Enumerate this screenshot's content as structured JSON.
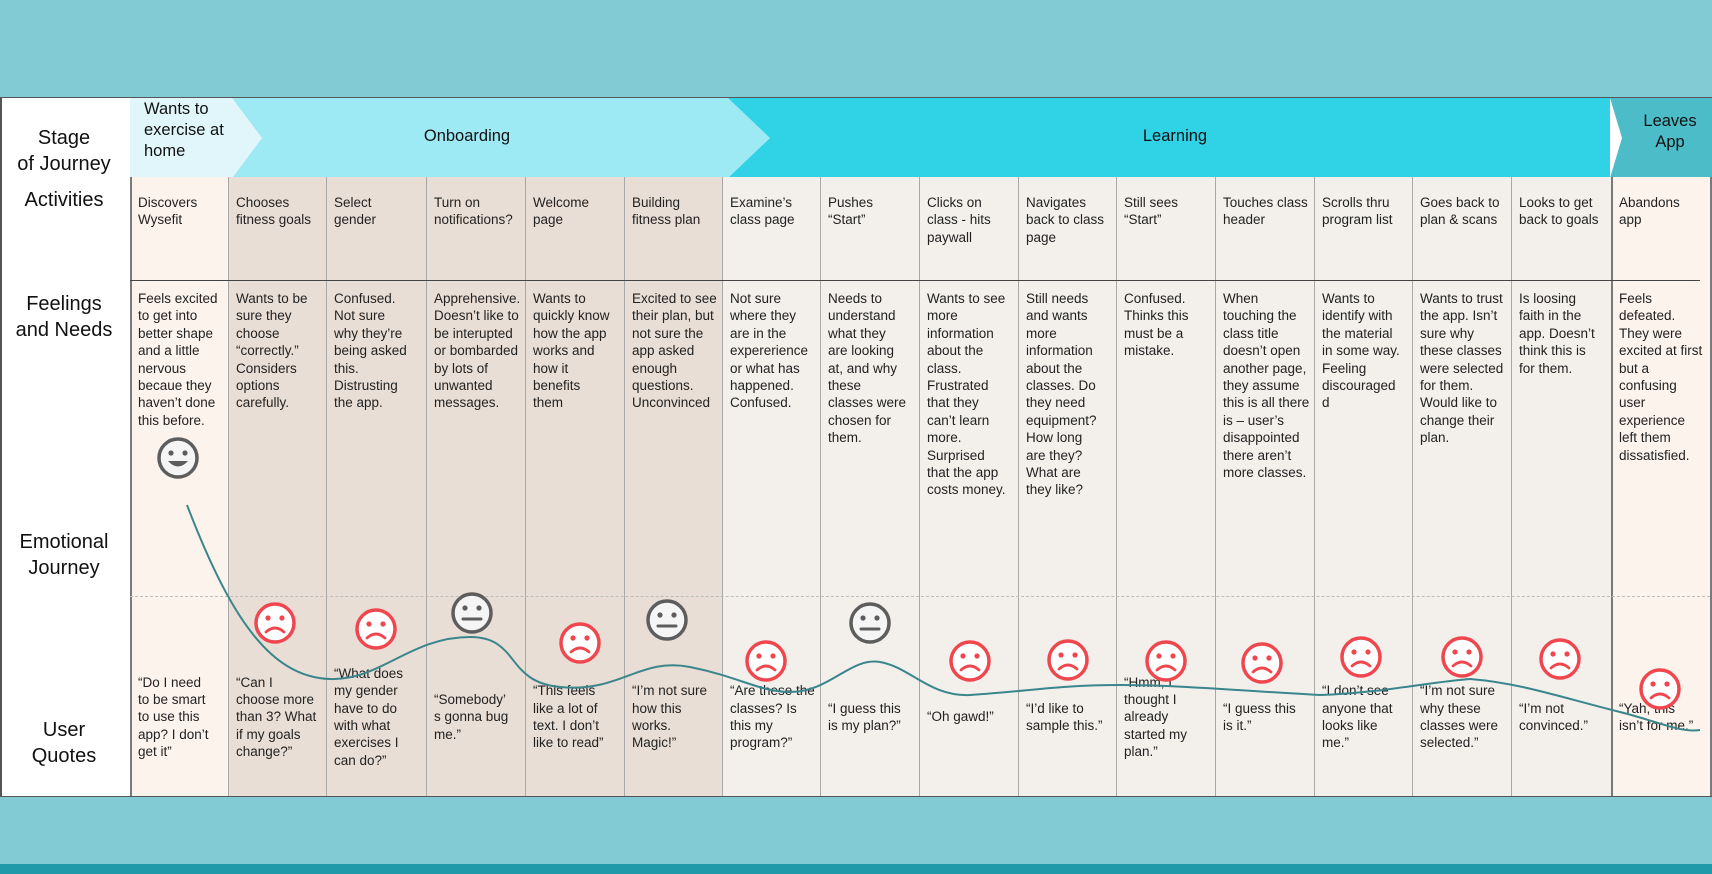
{
  "colors": {
    "background": "#82cbd4",
    "stage_light": "#e0f6fa",
    "stage_onboard": "#9eeaf4",
    "stage_learning": "#30d2e6",
    "stage_leave": "#4bbcc8",
    "col_first": "#fcf3ec",
    "col_onboard": "#e9ded5",
    "col_learning": "#f3f0ec",
    "sad": "#f0474f",
    "neutral": "#5d5d5d",
    "curve": "#3a868c"
  },
  "row_labels": {
    "stage": [
      "Stage",
      "of Journey"
    ],
    "activities": [
      "Activities"
    ],
    "feelings": [
      "Feelings",
      "and Needs"
    ],
    "emotional": [
      "Emotional",
      "Journey"
    ],
    "quotes": [
      "User",
      "Quotes"
    ]
  },
  "stages": [
    {
      "lines": [
        "Wants to",
        "exercise at",
        "home"
      ]
    },
    {
      "lines": [
        "Onboarding"
      ]
    },
    {
      "lines": [
        "Learning"
      ]
    },
    {
      "lines": [
        "Leaves",
        "App"
      ]
    }
  ],
  "columns": [
    {
      "activity": [
        "Discovers",
        "Wysefit"
      ],
      "feeling": [
        "Feels excited",
        "to get into",
        "better shape",
        "and a little",
        "nervous",
        "becaue they",
        "haven’t done",
        "this before."
      ],
      "quote": [
        "“Do I need",
        "to be smart",
        "to use this",
        "app? I don’t",
        "get it”"
      ],
      "emotion": "happy",
      "sentiment": 0.95
    },
    {
      "activity": [
        "Chooses",
        "fitness goals"
      ],
      "feeling": [
        "Wants to be",
        "sure they",
        "choose",
        "“correctly.”",
        "Considers",
        "options",
        "carefully."
      ],
      "quote": [
        "“Can I",
        "choose more",
        "than 3? What",
        "if my goals",
        "change?”"
      ],
      "emotion": "sad",
      "sentiment": 0.4
    },
    {
      "activity": [
        "Select",
        "gender"
      ],
      "feeling": [
        "Confused.",
        "Not sure",
        "why they’re",
        "being asked",
        "this.",
        "Distrusting",
        "the app."
      ],
      "quote": [
        "“What does",
        "my gender",
        "have to do",
        "with what",
        "exercises I",
        "can do?”"
      ],
      "emotion": "sad",
      "sentiment": 0.38
    },
    {
      "activity": [
        "Turn on",
        "notifications?"
      ],
      "feeling": [
        "Apprehensive.",
        "Doesn’t like to",
        "be interupted",
        "or bombarded",
        "by lots of",
        "unwanted",
        "messages."
      ],
      "quote": [
        "“Somebody’",
        "s gonna bug",
        "me.”"
      ],
      "emotion": "neutral",
      "sentiment": 0.5
    },
    {
      "activity": [
        "Welcome",
        "page"
      ],
      "feeling": [
        "Wants to",
        "quickly know",
        "how the app",
        "works and",
        "how it",
        "benefits",
        "them"
      ],
      "quote": [
        "“This feels",
        "like a lot of",
        "text. I don’t",
        "like to read”"
      ],
      "emotion": "sad",
      "sentiment": 0.35
    },
    {
      "activity": [
        "Building",
        "fitness plan"
      ],
      "feeling": [
        "Excited to see",
        "their plan, but",
        "not sure the",
        "app asked",
        "enough",
        "questions.",
        "Unconvinced"
      ],
      "quote": [
        "“I’m not sure",
        "how this",
        "works.",
        "Magic!”"
      ],
      "emotion": "neutral",
      "sentiment": 0.47
    },
    {
      "activity": [
        "Examine’s",
        "class page"
      ],
      "feeling": [
        "Not sure",
        "where they",
        "are in the",
        "expererience",
        "or what has",
        "happened.",
        "Confused."
      ],
      "quote": [
        "“Are these the",
        "classes? Is",
        "this my",
        "program?”"
      ],
      "emotion": "sad",
      "sentiment": 0.34
    },
    {
      "activity": [
        "Pushes",
        "“Start”"
      ],
      "feeling": [
        "Needs to",
        "understand",
        "what they",
        "are looking",
        "at, and why",
        "these",
        "classes were",
        "chosen for",
        "them."
      ],
      "quote": [
        "“I guess this",
        "is my plan?”"
      ],
      "emotion": "neutral",
      "sentiment": 0.47
    },
    {
      "activity": [
        "Clicks on",
        "class - hits",
        "paywall"
      ],
      "feeling": [
        "Wants to see",
        "more",
        "information",
        "about the",
        "class.",
        "Frustrated",
        "that they",
        "can’t learn",
        "more.",
        "Surprised",
        "that the app",
        "costs money."
      ],
      "quote": [
        "“Oh gawd!”"
      ],
      "emotion": "sad",
      "sentiment": 0.34
    },
    {
      "activity": [
        "Navigates",
        "back to class",
        "page"
      ],
      "feeling": [
        "Still needs",
        "and wants",
        "more",
        "information",
        "about the",
        "classes. Do",
        "they need",
        "equipment?",
        "How long",
        "are they?",
        "What are",
        "they like?"
      ],
      "quote": [
        "“I’d like to",
        "sample this.”"
      ],
      "emotion": "sad",
      "sentiment": 0.34
    },
    {
      "activity": [
        "Still sees",
        "“Start”"
      ],
      "feeling": [
        "Confused.",
        "Thinks this",
        "must be a",
        "mistake."
      ],
      "quote": [
        "“Hmm, I",
        "thought I",
        "already",
        "started my",
        "plan.”"
      ],
      "emotion": "sad",
      "sentiment": 0.34
    },
    {
      "activity": [
        "Touches class",
        "header"
      ],
      "feeling": [
        "When",
        "touching the",
        "class title",
        "doesn’t open",
        "another page,",
        "they assume",
        "this is all there",
        "is – user’s",
        "disappointed",
        "there aren’t",
        "more classes."
      ],
      "quote": [
        "“I guess this",
        "is it.”"
      ],
      "emotion": "sad",
      "sentiment": 0.34
    },
    {
      "activity": [
        "Scrolls thru",
        "program list"
      ],
      "feeling": [
        "Wants to",
        "identify with",
        "the material",
        "in some way.",
        "Feeling",
        "discouraged",
        "d"
      ],
      "quote": [
        "“I don’t see",
        "anyone that",
        "looks like",
        "me.”"
      ],
      "emotion": "sad",
      "sentiment": 0.36
    },
    {
      "activity": [
        "Goes back to",
        "plan & scans"
      ],
      "feeling": [
        "Wants to trust",
        "the app. Isn’t",
        "sure why",
        "these classes",
        "were selected",
        "for them.",
        "Would like to",
        "change their",
        "plan."
      ],
      "quote": [
        "“I’m not sure",
        "why these",
        "classes were",
        "selected.”"
      ],
      "emotion": "sad",
      "sentiment": 0.36
    },
    {
      "activity": [
        "Looks to get",
        "back to goals"
      ],
      "feeling": [
        "Is loosing",
        "faith in the",
        "app. Doesn’t",
        "think this is",
        "for them."
      ],
      "quote": [
        "“I’m not",
        "convinced.”"
      ],
      "emotion": "sad",
      "sentiment": 0.34
    },
    {
      "activity": [
        "Abandons",
        "app"
      ],
      "feeling": [
        "Feels",
        "defeated.",
        "They were",
        "excited at first",
        "but a",
        "confusing",
        "user",
        "experience",
        "left them",
        "dissatisfied."
      ],
      "quote": [
        "“Yah, this",
        "isn’t for me.”"
      ],
      "emotion": "sad",
      "sentiment": 0.26
    }
  ]
}
